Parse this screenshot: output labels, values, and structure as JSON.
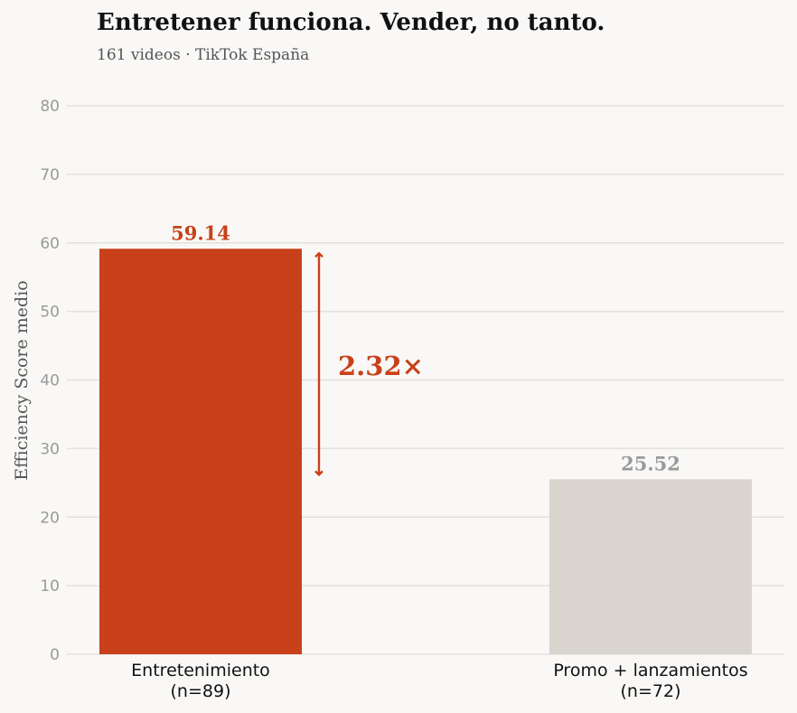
{
  "chart_data": {
    "type": "bar",
    "title": "Entretener funciona. Vender, no tanto.",
    "subtitle": "161 videos · TikTok España",
    "ylabel": "Efficiency Score medio",
    "xlabel": "",
    "ylim": [
      0,
      80
    ],
    "yticks": [
      "0",
      "10",
      "20",
      "30",
      "40",
      "50",
      "60",
      "70",
      "80"
    ],
    "grid": true,
    "categories": [
      {
        "line1": "Entretenimiento",
        "line2": "(n=89)"
      },
      {
        "line1": "Promo + lanzamientos",
        "line2": "(n=72)"
      }
    ],
    "values": [
      59.14,
      25.52
    ],
    "value_labels": [
      "59.14",
      "25.52"
    ],
    "annotation": {
      "text": "2.32×",
      "from": 25.52,
      "to": 59.14
    },
    "colors": {
      "bar_primary": "#c8411a",
      "bar_secondary": "#d9d4ce",
      "label_secondary": "#999999",
      "grid": "#e3e1de",
      "background": "#f9f8f6"
    }
  }
}
